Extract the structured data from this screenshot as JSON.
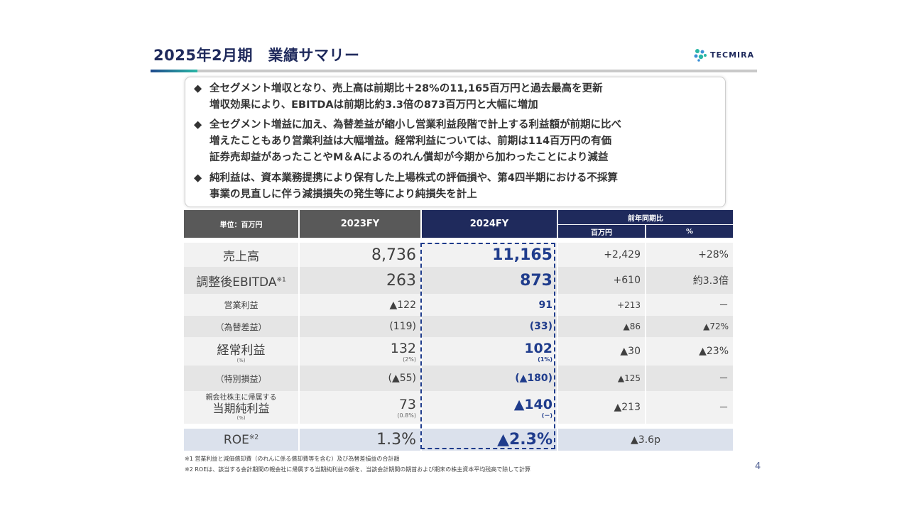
{
  "title": "2025年2月期　業績サマリー",
  "logo": {
    "text": "TECMIRA",
    "icon": "tecmira-logo-icon"
  },
  "colors": {
    "navy": "#1f2a5c",
    "accent_blue": "#1f3c8c",
    "header_gray": "#595959",
    "teal": "#2bb7a6"
  },
  "summary": {
    "bullet_icon": "diamond-icon",
    "bullet_char": "◆",
    "items": [
      {
        "line1": "全セグメント増収となり、売上高は前期比＋28%の11,165百万円と過去最高を更新",
        "line2": "増収効果により、EBITDAは前期比約3.3倍の873百万円と大幅に増加",
        "line3": ""
      },
      {
        "line1": "全セグメント増益に加え、為替差益が縮小し営業利益段階で計上する利益額が前期に比べ",
        "line2": "増えたこともあり営業利益は大幅増益。経常利益については、前期は114百万円の有価",
        "line3": "証券売却益があったことやM＆Aによるのれん償却が今期から加わったことにより減益"
      },
      {
        "line1": "純利益は、資本業務提携により保有した上場株式の評価損や、第4四半期における不採算",
        "line2": "事業の見直しに伴う減損損失の発生等により純損失を計上",
        "line3": ""
      }
    ]
  },
  "table": {
    "header": {
      "unit": "単位：百万円",
      "fy2023": "2023FY",
      "fy2024": "2024FY",
      "yoy": "前年同期比",
      "yoy_amount": "百万円",
      "yoy_pct": "%"
    },
    "rows": [
      {
        "label": "売上高",
        "fy2023": "8,736",
        "fy2024": "11,165",
        "diff": "+2,429",
        "pct": "+28%"
      },
      {
        "label": "調整後EBITDA",
        "label_sup": "※1",
        "fy2023": "263",
        "fy2024": "873",
        "diff": "+610",
        "pct": "約3.3倍"
      },
      {
        "label": "営業利益",
        "fy2023": "▲122",
        "fy2024": "91",
        "diff": "+213",
        "pct": "－"
      },
      {
        "label": "（為替差益）",
        "fy2023": "(119)",
        "fy2024": "(33)",
        "diff": "▲86",
        "pct": "▲72%"
      },
      {
        "label": "経常利益",
        "label_note": "(%)",
        "fy2023": "132",
        "fy2023_note": "(2%)",
        "fy2024": "102",
        "fy2024_note": "(1%)",
        "diff": "▲30",
        "pct": "▲23%"
      },
      {
        "label": "（特別損益）",
        "fy2023": "(▲55)",
        "fy2024": "(▲180)",
        "diff": "▲125",
        "pct": "－"
      },
      {
        "label_top": "親会社株主に帰属する",
        "label": "当期純利益",
        "label_note": "(%)",
        "fy2023": "73",
        "fy2023_note": "(0.8%)",
        "fy2024": "▲140",
        "fy2024_note": "(－)",
        "diff": "▲213",
        "pct": "－"
      },
      {
        "label": "ROE",
        "label_sup": "※2",
        "fy2023": "1.3%",
        "fy2024": "▲2.3%",
        "diff": "▲3.6p"
      }
    ]
  },
  "footnotes": [
    "※1 営業利益と減価償却費（のれんに係る償却費等を含む）及び為替差損益の合計額",
    "※2 ROEは、該当する会計期間の親会社に帰属する当期純利益の額を、当該会計期間の期首および期末の株主資本平均残高で除して計算"
  ],
  "page_number": "4"
}
